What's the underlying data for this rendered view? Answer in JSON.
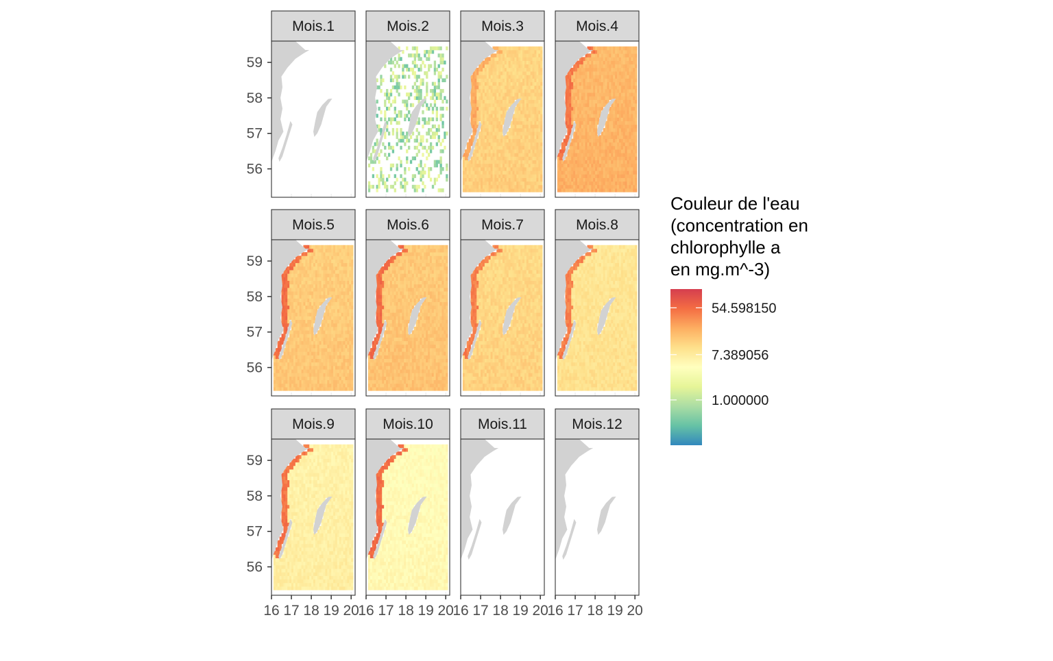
{
  "chart_data": {
    "type": "heatmap",
    "panels": [
      {
        "label": "Mois.1",
        "level": null,
        "coverage": 0,
        "coast_level": null
      },
      {
        "label": "Mois.2",
        "level": 0.28,
        "coverage": 0.35,
        "coast_level": null
      },
      {
        "label": "Mois.3",
        "level": 0.66,
        "coverage": 1,
        "coast_level": 0.76
      },
      {
        "label": "Mois.4",
        "level": 0.73,
        "coverage": 1,
        "coast_level": 0.86
      },
      {
        "label": "Mois.5",
        "level": 0.68,
        "coverage": 1,
        "coast_level": 0.88
      },
      {
        "label": "Mois.6",
        "level": 0.69,
        "coverage": 1,
        "coast_level": 0.88
      },
      {
        "label": "Mois.7",
        "level": 0.65,
        "coverage": 1,
        "coast_level": 0.84
      },
      {
        "label": "Mois.8",
        "level": 0.61,
        "coverage": 1,
        "coast_level": 0.84
      },
      {
        "label": "Mois.9",
        "level": 0.56,
        "coverage": 1,
        "coast_level": 0.86
      },
      {
        "label": "Mois.10",
        "level": 0.52,
        "coverage": 1,
        "coast_level": 0.88
      },
      {
        "label": "Mois.11",
        "level": null,
        "coverage": 0,
        "coast_level": null
      },
      {
        "label": "Mois.12",
        "level": null,
        "coverage": 0,
        "coast_level": null
      }
    ],
    "x_ticks": [
      "16",
      "17",
      "18",
      "19",
      "20"
    ],
    "x_tick_values": [
      16,
      17,
      18,
      19,
      20
    ],
    "y_ticks": [
      "56",
      "57",
      "58",
      "59"
    ],
    "y_tick_values": [
      56,
      57,
      58,
      59
    ],
    "xlim": [
      16,
      20.2
    ],
    "ylim": [
      55.2,
      59.6
    ],
    "xlabel": "",
    "ylabel": "",
    "legend": {
      "title_lines": [
        "Couleur de l'eau",
        "(concentration en",
        "chlorophylle a",
        "en mg.m^-3)"
      ],
      "labels": [
        "54.598150",
        "7.389056",
        "1.000000"
      ],
      "label_fractions": [
        0.88,
        0.58,
        0.29
      ],
      "colors": [
        "#3288BD",
        "#66C2A5",
        "#ABDDA4",
        "#E6F598",
        "#FFFFBF",
        "#FEE08B",
        "#FDAE61",
        "#F46D43",
        "#D53E4F"
      ],
      "placement": "right"
    },
    "land_color": "#D2D2D2",
    "strip_color": "#D9D9D9",
    "grid": false
  }
}
